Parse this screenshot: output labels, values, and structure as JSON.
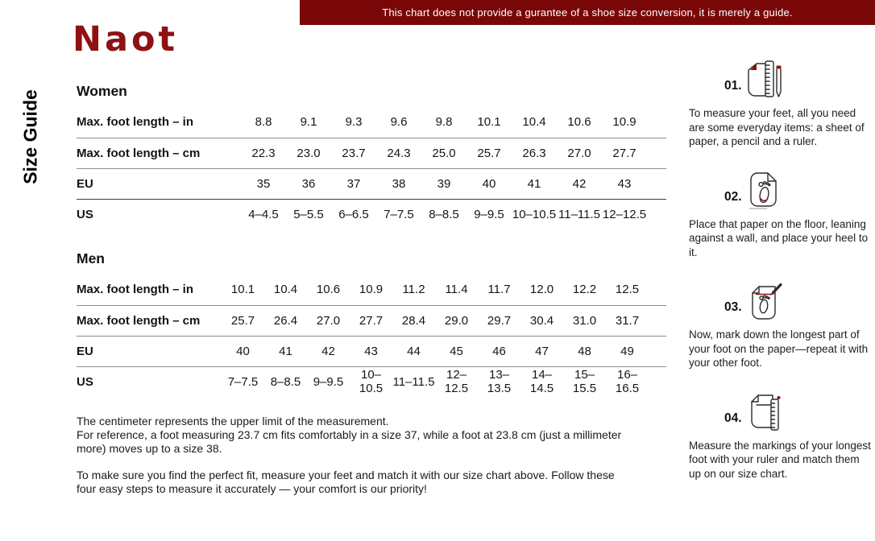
{
  "colors": {
    "accent_red": "#8e1113",
    "banner_bg": "#7a0708",
    "text": "#1c1c1c",
    "line_gray": "#8d8d8d"
  },
  "banner": {
    "text": "This chart does not provide a gurantee of a shoe size conversion, it is merely a guide."
  },
  "logo": {
    "text": "Naot"
  },
  "page": {
    "vertical_label": "Size Guide"
  },
  "tables": {
    "women": {
      "heading": "Women",
      "rows": [
        {
          "label": "Max. foot length – in",
          "values": [
            "8.8",
            "9.1",
            "9.3",
            "9.6",
            "9.8",
            "10.1",
            "10.4",
            "10.6",
            "10.9"
          ]
        },
        {
          "label": "Max. foot length – cm",
          "values": [
            "22.3",
            "23.0",
            "23.7",
            "24.3",
            "25.0",
            "25.7",
            "26.3",
            "27.0",
            "27.7"
          ]
        },
        {
          "label": "EU",
          "values": [
            "35",
            "36",
            "37",
            "38",
            "39",
            "40",
            "41",
            "42",
            "43"
          ]
        },
        {
          "label": "US",
          "values": [
            "4–4.5",
            "5–5.5",
            "6–6.5",
            "7–7.5",
            "8–8.5",
            "9–9.5",
            "10–10.5",
            "11–11.5",
            "12–12.5"
          ]
        }
      ]
    },
    "men": {
      "heading": "Men",
      "rows": [
        {
          "label": "Max. foot length – in",
          "values": [
            "10.1",
            "10.4",
            "10.6",
            "10.9",
            "11.2",
            "11.4",
            "11.7",
            "12.0",
            "12.2",
            "12.5"
          ]
        },
        {
          "label": "Max. foot length – cm",
          "values": [
            "25.7",
            "26.4",
            "27.0",
            "27.7",
            "28.4",
            "29.0",
            "29.7",
            "30.4",
            "31.0",
            "31.7"
          ]
        },
        {
          "label": "EU",
          "values": [
            "40",
            "41",
            "42",
            "43",
            "44",
            "45",
            "46",
            "47",
            "48",
            "49"
          ]
        },
        {
          "label": "US",
          "values": [
            "7–7.5",
            "8–8.5",
            "9–9.5",
            "10–10.5",
            "11–11.5",
            "12–12.5",
            "13–13.5",
            "14–14.5",
            "15–15.5",
            "16–16.5"
          ]
        }
      ]
    }
  },
  "notes": {
    "para1_line1": "The centimeter represents the upper limit of the measurement.",
    "para1_line2": "For reference, a foot measuring 23.7 cm fits comfortably in a size 37, while a foot at 23.8 cm (just a millimeter more) moves up to a size 38.",
    "para2": "To make sure you find the perfect fit, measure your feet and match it with our size chart above. Follow these four easy steps to measure it accurately — your comfort is our priority!"
  },
  "steps": [
    {
      "number": "01.",
      "icon": "paper-ruler-pencil-icon",
      "text": "To measure your feet, all you need are some everyday items: a sheet of paper, a pencil and a ruler."
    },
    {
      "number": "02.",
      "icon": "paper-footprint-icon",
      "text": "Place that paper on the floor, leaning against a wall, and place your heel to it."
    },
    {
      "number": "03.",
      "icon": "paper-footprint-pencil-icon",
      "text": "Now, mark down the longest part of your foot on the paper—repeat it with your other foot."
    },
    {
      "number": "04.",
      "icon": "paper-ruler-icon",
      "text": "Measure the markings of your longest foot with your ruler and match them up on our size chart."
    }
  ]
}
